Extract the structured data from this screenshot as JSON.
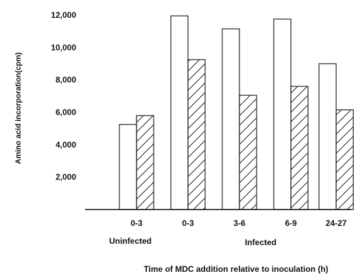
{
  "chart_data": {
    "type": "bar",
    "title": "",
    "ylabel": "Amino acid incorporation(cpm)",
    "xlabel": "Time of MDC addition relative to inoculation (h)",
    "ylim": [
      0,
      12000
    ],
    "yticks": [
      "2,000",
      "4,000",
      "6,000",
      "8,000",
      "10,000",
      "12,000"
    ],
    "ytick_values": [
      2000,
      4000,
      6000,
      8000,
      10000,
      12000
    ],
    "categories": [
      "0-3",
      "0-3",
      "3-6",
      "6-9",
      "24-27"
    ],
    "group_labels": [
      {
        "label": "Uninfected",
        "categories": [
          0
        ]
      },
      {
        "label": "Infected",
        "categories": [
          1,
          2,
          3,
          4
        ]
      }
    ],
    "series": [
      {
        "values": [
          5250,
          11950,
          11150,
          11750,
          9000
        ],
        "pattern": "open"
      },
      {
        "values": [
          5800,
          9250,
          7050,
          7600,
          6150
        ],
        "pattern": "hatched"
      }
    ],
    "grid": false,
    "legend": "none"
  }
}
